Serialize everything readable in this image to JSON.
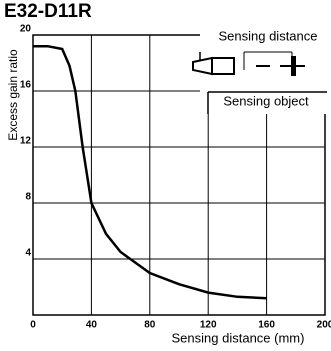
{
  "chart_data": {
    "type": "line",
    "title": "E32-D11R",
    "x_label": "Sensing distance (mm)",
    "y_label": "Excess gain ratio",
    "annotations": [
      "Sensing distance",
      "Sensing object"
    ],
    "x": [
      0,
      10,
      20,
      25,
      29,
      34,
      40,
      50,
      60,
      80,
      100,
      120,
      140,
      160
    ],
    "series": [
      {
        "name": "E32-D11R",
        "color": "#000000",
        "values": [
          19.2,
          19.2,
          19.0,
          17.8,
          16,
          12,
          8,
          5.8,
          4.5,
          3.0,
          2.2,
          1.6,
          1.3,
          1.2
        ]
      }
    ],
    "xlim": [
      0,
      200
    ],
    "ylim": [
      0,
      20
    ],
    "xticks": [
      0,
      40,
      80,
      120,
      160,
      200
    ],
    "yticks": [
      4,
      8,
      12,
      16,
      20
    ],
    "grid": true
  }
}
